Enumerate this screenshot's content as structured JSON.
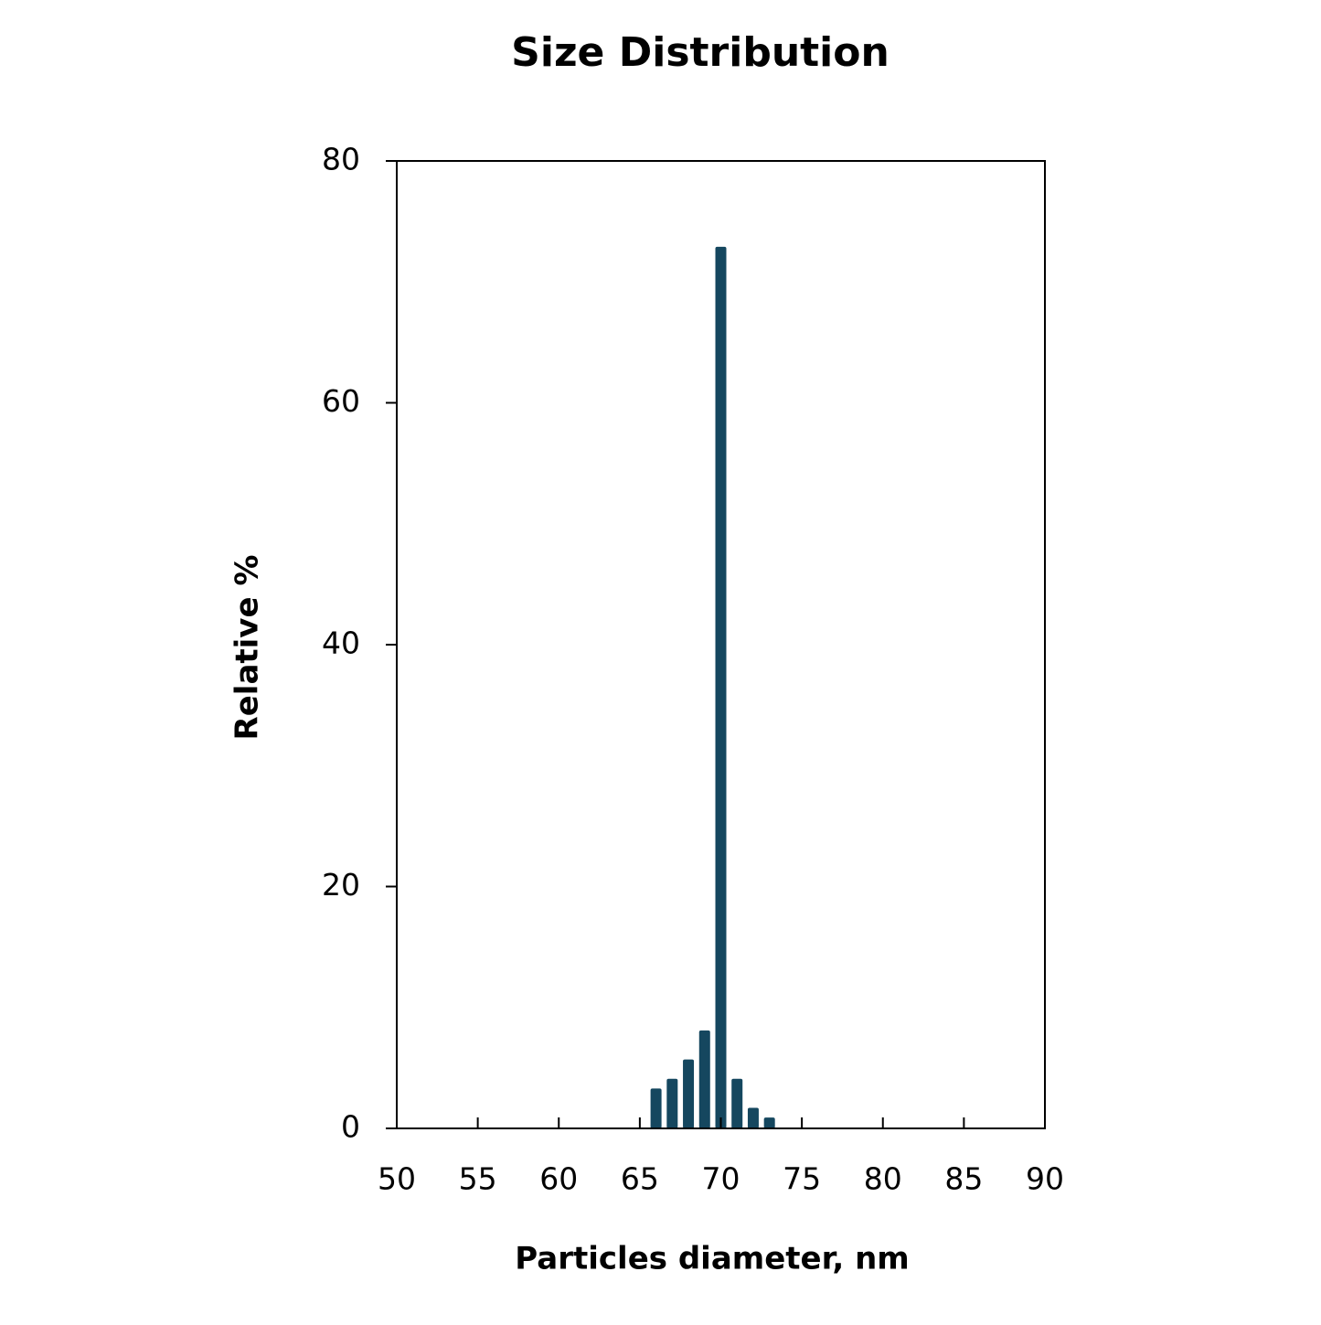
{
  "chart_data": {
    "type": "bar",
    "title": "Size Distribution",
    "x_label": "Particles diameter, nm",
    "y_label": "Relative %",
    "x": [
      66,
      67,
      68,
      69,
      70,
      71,
      72,
      73
    ],
    "values": [
      3.3,
      4.1,
      5.7,
      8.1,
      72.9,
      4.1,
      1.7,
      0.9
    ],
    "color": "#15475f",
    "xlim": [
      50,
      90
    ],
    "xticks": [
      50,
      55,
      60,
      65,
      70,
      75,
      80,
      85,
      90
    ],
    "ylim": [
      0,
      80
    ],
    "yticks": [
      0,
      20,
      40,
      60,
      80
    ]
  }
}
